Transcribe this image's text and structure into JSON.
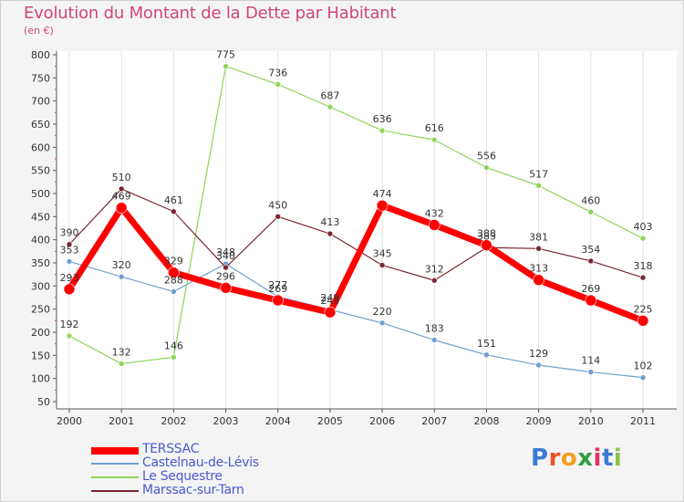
{
  "title": "Evolution du Montant de la Dette par Habitant",
  "unit": "(en €)",
  "logo": {
    "text": "Proxiti",
    "colors": [
      "#3a7bd5",
      "#e8562a",
      "#f0a01c",
      "#2f9e41",
      "#e2316a",
      "#3a7bd5",
      "#8bc34a"
    ]
  },
  "chart_data": {
    "type": "line",
    "title": "Evolution du Montant de la Dette par Habitant",
    "ylabel": "(en €)",
    "x": [
      "2000",
      "2001",
      "2002",
      "2003",
      "2004",
      "2005",
      "2006",
      "2007",
      "2008",
      "2009",
      "2010",
      "2011"
    ],
    "ylim": [
      50,
      800
    ],
    "yticks": [
      50,
      100,
      150,
      200,
      250,
      300,
      350,
      400,
      450,
      500,
      550,
      600,
      650,
      700,
      750,
      800
    ],
    "grid": "vertical",
    "legend": "bottom-left",
    "series": [
      {
        "name": "Castelnau-de-Lévis",
        "color": "#6fa0cf",
        "values": [
          353,
          320,
          288,
          348,
          277,
          249,
          220,
          183,
          151,
          129,
          114,
          102
        ]
      },
      {
        "name": "Le Sequestre",
        "color": "#90d35a",
        "values": [
          192,
          132,
          146,
          775,
          736,
          687,
          636,
          616,
          556,
          517,
          460,
          403
        ]
      },
      {
        "name": "Marssac-sur-Tarn",
        "color": "#7a2630",
        "values": [
          390,
          510,
          461,
          340,
          450,
          413,
          345,
          312,
          383,
          381,
          354,
          318
        ]
      },
      {
        "name": "TERSSAC",
        "color": "#ff0000",
        "values": [
          293,
          469,
          329,
          296,
          269,
          243,
          474,
          432,
          388,
          313,
          269,
          225
        ]
      }
    ],
    "legend_order": [
      "TERSSAC",
      "Castelnau-de-Lévis",
      "Le Sequestre",
      "Marssac-sur-Tarn"
    ]
  }
}
